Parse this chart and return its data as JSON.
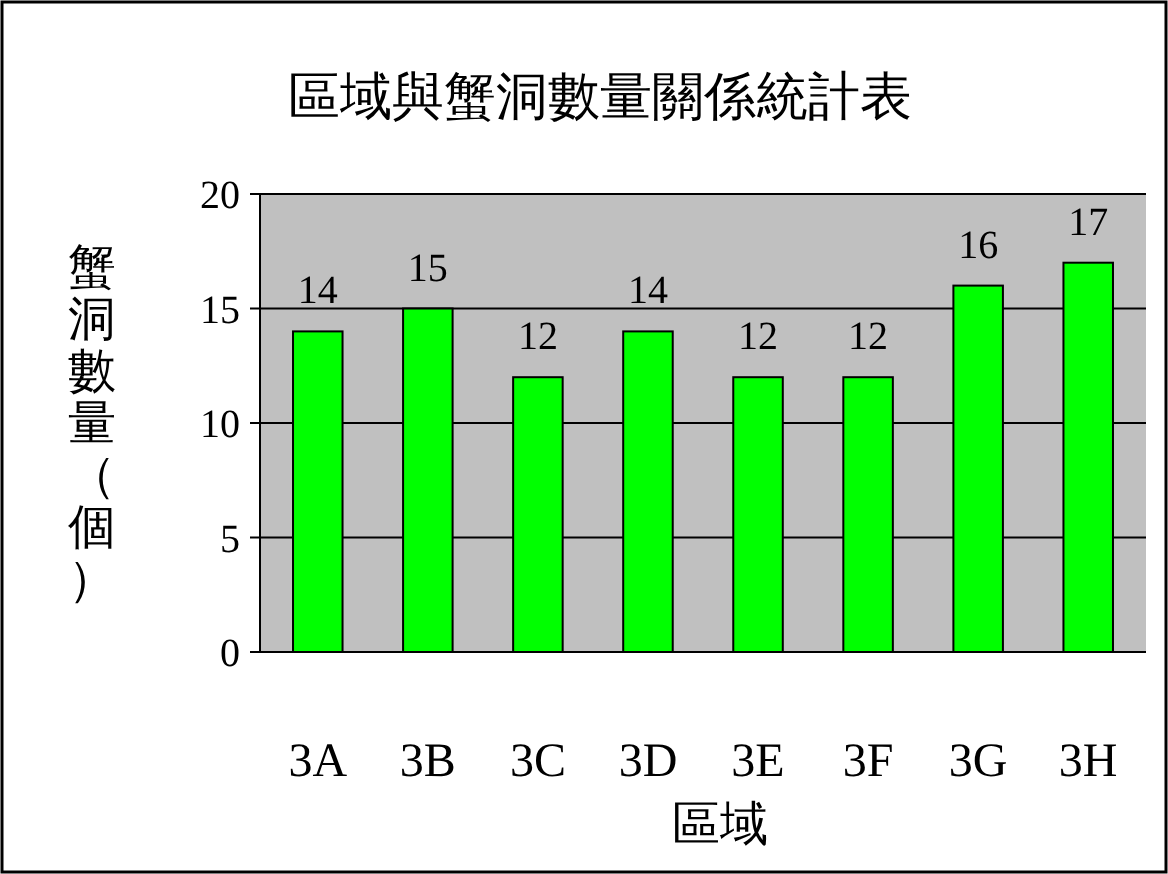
{
  "chart_data": {
    "type": "bar",
    "title": "區域與蟹洞數量關係統計表",
    "xlabel": "區域",
    "ylabel": "蟹洞數量（個）",
    "categories": [
      "3A",
      "3B",
      "3C",
      "3D",
      "3E",
      "3F",
      "3G",
      "3H"
    ],
    "values": [
      14,
      15,
      12,
      14,
      12,
      12,
      16,
      17
    ],
    "color": "#00ff00",
    "ylim": [
      0,
      20
    ],
    "yticks": [
      0,
      5,
      10,
      15,
      20
    ],
    "grid": "y",
    "data_labels": true
  }
}
